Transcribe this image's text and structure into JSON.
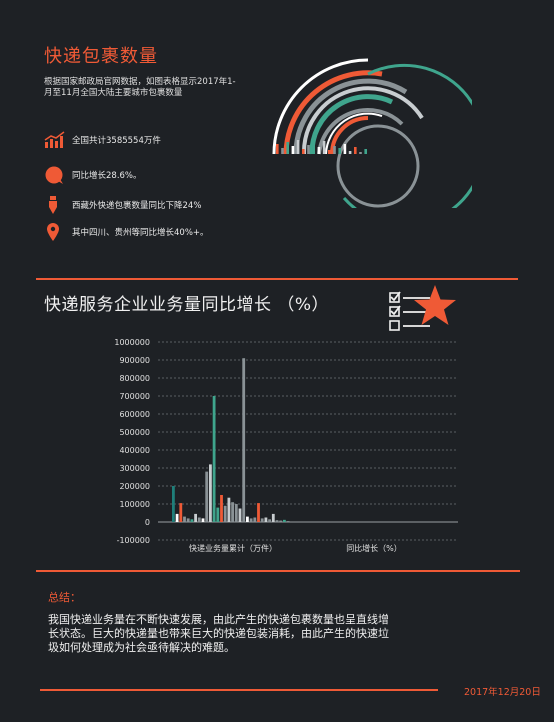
{
  "header": {
    "title": "快递包裹数量",
    "intro": "根据国家邮政局官网数据，如图表格显示2017年1-月至11月全国大陆主要城市包裹数量"
  },
  "stats": [
    {
      "icon": "chart-up-icon",
      "text": "全国共计3585554万件"
    },
    {
      "icon": "circle-icon",
      "text": "同比增长28.6%。"
    },
    {
      "icon": "pen-icon",
      "text": "西藏外快递包裹数量同比下降24%"
    },
    {
      "icon": "location-pin-icon",
      "text": "其中四川、贵州等同比增长40%+。"
    }
  ],
  "chart_section": {
    "title": "快递服务企业业务量同比增长 （%）"
  },
  "chart_data": {
    "type": "bar",
    "title": "快递服务企业业务量同比增长 （%）",
    "ylim": [
      -100000,
      1000000
    ],
    "yticks": [
      "1000000",
      "900000",
      "800000",
      "700000",
      "600000",
      "500000",
      "400000",
      "300000",
      "200000",
      "100000",
      "0",
      "-100000"
    ],
    "ytick_values": [
      1000000,
      900000,
      800000,
      700000,
      600000,
      500000,
      400000,
      300000,
      200000,
      100000,
      0,
      -100000
    ],
    "categories": [
      "快递业务量累计（万件）",
      "同比增长（%）"
    ],
    "colors": [
      "#1f7f7a",
      "#ffffff",
      "#ef5a36",
      "#8a9296",
      "#3fa58d",
      "#c8cdd0"
    ],
    "bars": [
      {
        "cat": 0,
        "v": 200000,
        "c": 0
      },
      {
        "cat": 0,
        "v": 45000,
        "c": 1
      },
      {
        "cat": 0,
        "v": 105000,
        "c": 2
      },
      {
        "cat": 0,
        "v": 30000,
        "c": 3
      },
      {
        "cat": 0,
        "v": 20000,
        "c": 3
      },
      {
        "cat": 0,
        "v": 15000,
        "c": 4
      },
      {
        "cat": 0,
        "v": 45000,
        "c": 5
      },
      {
        "cat": 0,
        "v": 25000,
        "c": 3
      },
      {
        "cat": 0,
        "v": 20000,
        "c": 1
      },
      {
        "cat": 0,
        "v": 280000,
        "c": 3
      },
      {
        "cat": 0,
        "v": 320000,
        "c": 5
      },
      {
        "cat": 0,
        "v": 700000,
        "c": 4
      },
      {
        "cat": 0,
        "v": 80000,
        "c": 4
      },
      {
        "cat": 0,
        "v": 150000,
        "c": 2
      },
      {
        "cat": 0,
        "v": 90000,
        "c": 3
      },
      {
        "cat": 0,
        "v": 135000,
        "c": 5
      },
      {
        "cat": 0,
        "v": 110000,
        "c": 3
      },
      {
        "cat": 0,
        "v": 100000,
        "c": 3
      },
      {
        "cat": 0,
        "v": 75000,
        "c": 5
      },
      {
        "cat": 0,
        "v": 910000,
        "c": 3
      },
      {
        "cat": 0,
        "v": 30000,
        "c": 1
      },
      {
        "cat": 0,
        "v": 20000,
        "c": 3
      },
      {
        "cat": 0,
        "v": 25000,
        "c": 3
      },
      {
        "cat": 0,
        "v": 105000,
        "c": 2
      },
      {
        "cat": 0,
        "v": 20000,
        "c": 3
      },
      {
        "cat": 0,
        "v": 25000,
        "c": 5
      },
      {
        "cat": 0,
        "v": 15000,
        "c": 3
      },
      {
        "cat": 0,
        "v": 45000,
        "c": 5
      },
      {
        "cat": 0,
        "v": 10000,
        "c": 3
      },
      {
        "cat": 0,
        "v": 8000,
        "c": 3
      },
      {
        "cat": 0,
        "v": 12000,
        "c": 4
      },
      {
        "cat": 0,
        "v": 5000,
        "c": 3
      },
      {
        "cat": 1,
        "v": 0,
        "c": 3
      }
    ],
    "grid": true
  },
  "summary": {
    "label": "总结：",
    "text": "我国快递业务量在不断快速发展，由此产生的快递包裹数量也呈直线增长状态。巨大的快递量也带来巨大的快递包装消耗，由此产生的快速垃圾如何处理成为社会亟待解决的难题。"
  },
  "footer": {
    "date": "2017年12月20日"
  },
  "theme": {
    "background": "#1e2125",
    "accent": "#ef5a36",
    "teal": "#3fa58d",
    "grey": "#8a9296"
  },
  "decor": {
    "radial_icon": "radial-bar-graphic",
    "checklist_icon": "checklist-icon",
    "star_icon": "star-icon"
  }
}
